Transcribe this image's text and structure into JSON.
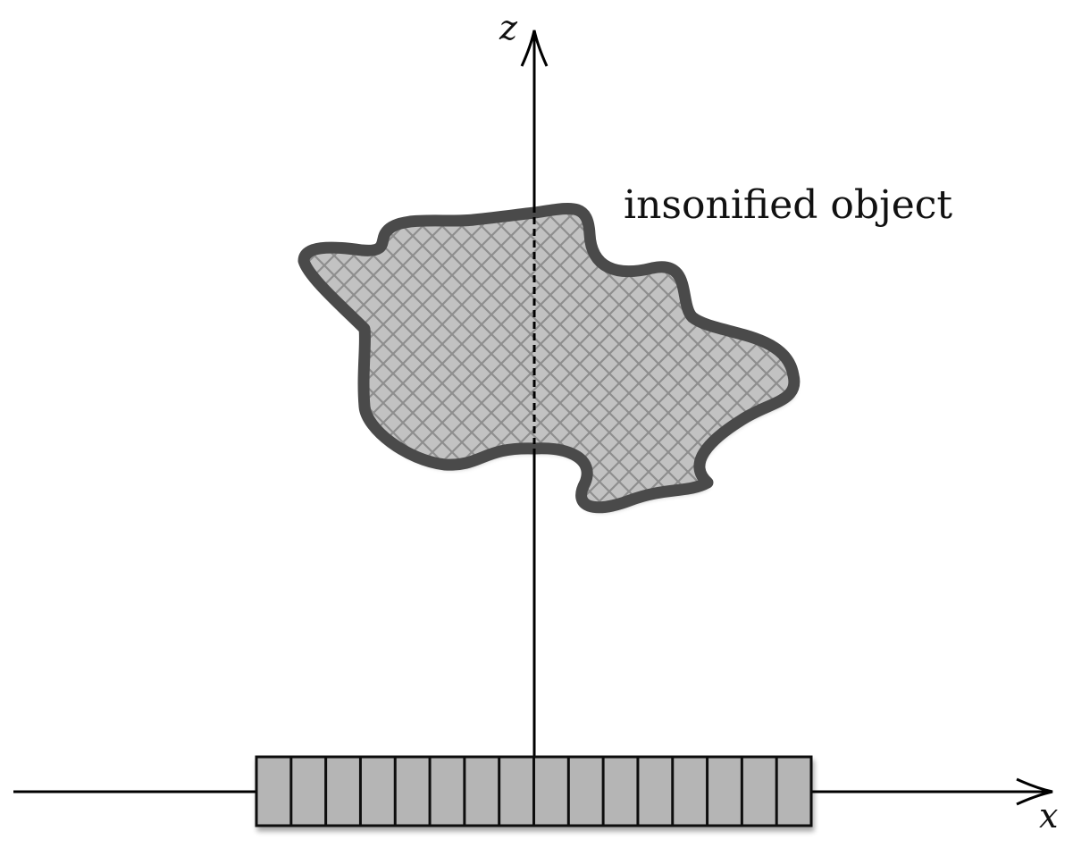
{
  "diagram": {
    "labels": {
      "z_axis": "z",
      "x_axis": "x",
      "object": "insonified object"
    },
    "transducer_array": {
      "element_count": 16
    },
    "colors": {
      "axis": "#000000",
      "object_outline": "#4a4a4a",
      "object_fill": "#c2c2c2",
      "object_hatch": "#8e8e8e",
      "array_fill": "#b5b5b5",
      "array_stroke": "#111111"
    }
  }
}
